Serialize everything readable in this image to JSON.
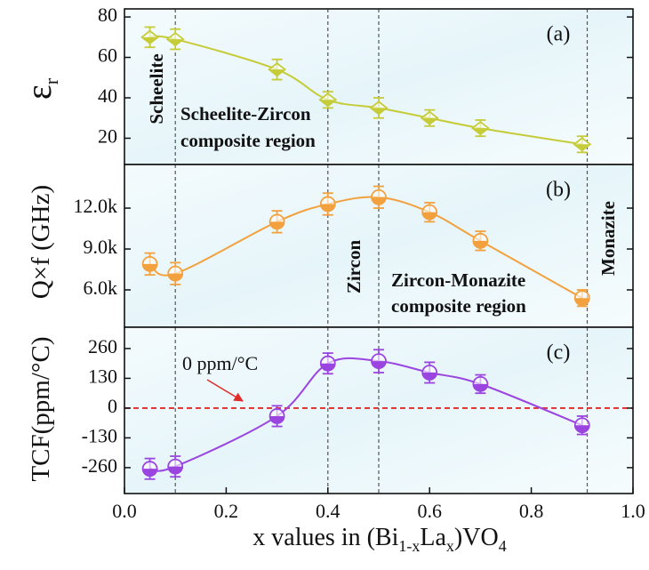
{
  "chart_data": [
    {
      "type": "line",
      "panel_label": "(a)",
      "ylabel": [
        "ε",
        "r"
      ],
      "xlim": [
        0,
        1
      ],
      "ylim": [
        7,
        84
      ],
      "yticks": [
        20,
        40,
        60,
        80
      ],
      "x": [
        0.05,
        0.1,
        0.3,
        0.4,
        0.5,
        0.6,
        0.7,
        0.9
      ],
      "values": [
        70,
        69,
        54,
        39,
        35,
        30,
        25,
        17
      ],
      "errors": [
        5,
        5,
        5,
        4,
        5,
        4,
        4,
        4
      ],
      "color": "#c5cc38",
      "marker": "diamond",
      "vlines": [
        0.1,
        0.4,
        0.5,
        0.91
      ],
      "annotations": [
        "Scheelite",
        "Scheelite-Zircon",
        "composite region"
      ]
    },
    {
      "type": "line",
      "panel_label": "(b)",
      "ylabel": [
        "Q×f (GHz)"
      ],
      "xlim": [
        0,
        1
      ],
      "ylim": [
        3260,
        15200
      ],
      "yticks": [
        {
          "value": 6000,
          "label": "6.0k"
        },
        {
          "value": 9000,
          "label": "9.0k"
        },
        {
          "value": 12000,
          "label": "12.0k"
        }
      ],
      "x": [
        0.05,
        0.1,
        0.3,
        0.4,
        0.5,
        0.6,
        0.7,
        0.9
      ],
      "values": [
        7900,
        7200,
        11000,
        12300,
        12800,
        11700,
        9600,
        5400
      ],
      "errors": [
        800,
        800,
        800,
        800,
        800,
        700,
        700,
        600
      ],
      "color": "#f2a13e",
      "marker": "circle",
      "vlines": [
        0.1,
        0.4,
        0.5,
        0.91
      ],
      "annotations": [
        "Zircon",
        "Zircon-Monazite",
        "composite region",
        "Monazite"
      ]
    },
    {
      "type": "line",
      "panel_label": "(c)",
      "ylabel": [
        "TCF(ppm/°C)"
      ],
      "xlabel": [
        "x values in (Bi",
        "1-x",
        "La",
        "x",
        ")VO",
        "4"
      ],
      "xlim": [
        0,
        1
      ],
      "xticks": [
        {
          "value": 0,
          "label": "0.0"
        },
        {
          "value": 0.2,
          "label": "0.2"
        },
        {
          "value": 0.4,
          "label": "0.4"
        },
        {
          "value": 0.6,
          "label": "0.6"
        },
        {
          "value": 0.8,
          "label": "0.8"
        },
        {
          "value": 1,
          "label": "1.0"
        }
      ],
      "ylim": [
        -373,
        353
      ],
      "yticks": [
        -260,
        -130,
        0,
        130,
        260
      ],
      "x": [
        0.05,
        0.1,
        0.3,
        0.4,
        0.5,
        0.6,
        0.7,
        0.9
      ],
      "values": [
        -265,
        -255,
        -35,
        195,
        205,
        155,
        105,
        -75
      ],
      "errors": [
        45,
        45,
        45,
        45,
        50,
        45,
        40,
        40
      ],
      "color": "#9b45e0",
      "marker": "circle",
      "vlines": [
        0.1,
        0.4,
        0.5,
        0.91
      ],
      "hline": 0,
      "hline_color": "#e02b2b",
      "annotations": [
        "0 ppm/°C"
      ]
    }
  ]
}
